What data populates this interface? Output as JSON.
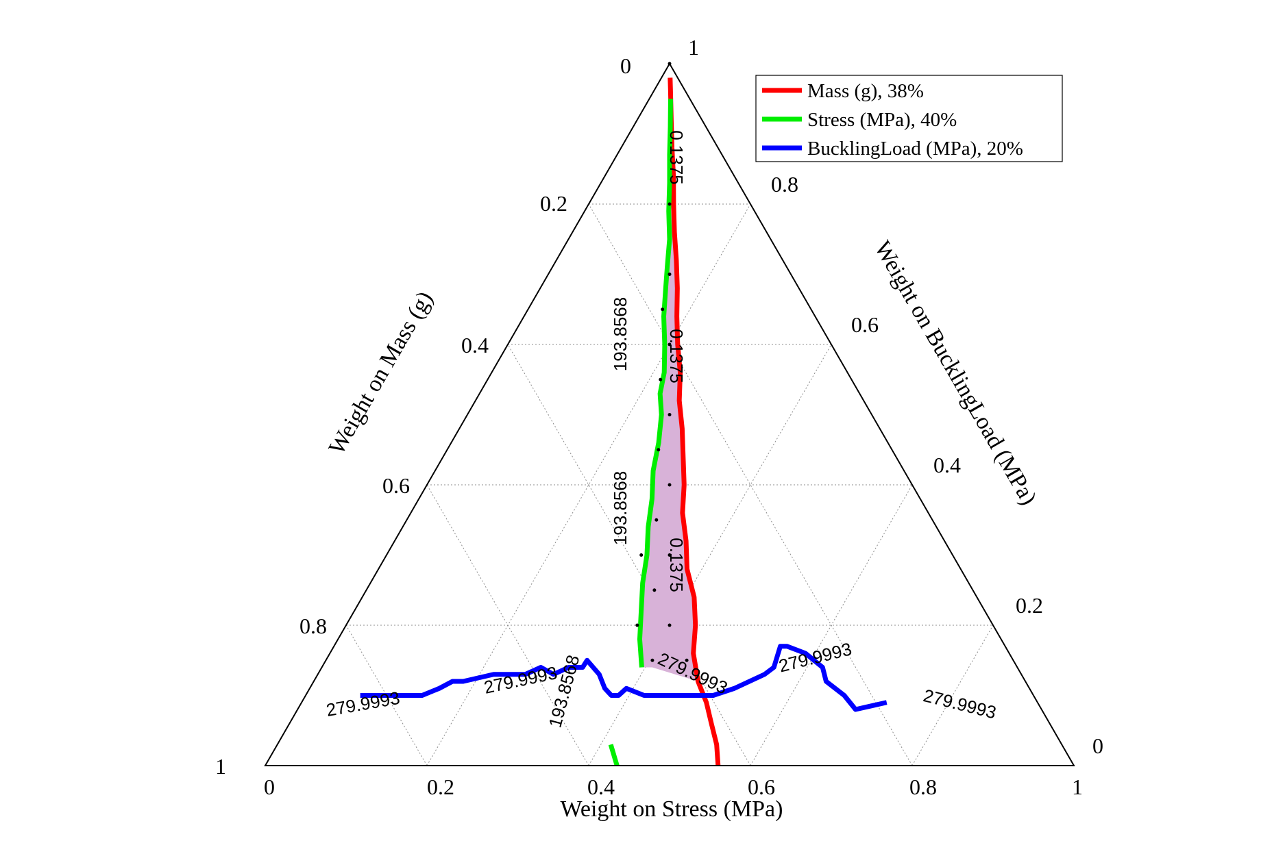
{
  "chart_data": {
    "type": "ternary",
    "axes": {
      "left": {
        "label": "Weight on Mass (g)",
        "ticks": [
          "0",
          "0.2",
          "0.4",
          "0.6",
          "0.8",
          "1"
        ]
      },
      "right": {
        "label": "Weight on BucklingLoad (MPa)",
        "ticks": [
          "1",
          "0.8",
          "0.6",
          "0.4",
          "0.2",
          "0"
        ]
      },
      "bottom": {
        "label": "Weight on Stress (MPa)",
        "ticks": [
          "0",
          "0.2",
          "0.4",
          "0.6",
          "0.8",
          "1"
        ]
      }
    },
    "grid": true,
    "legend": {
      "placement": "top-right",
      "entries": [
        {
          "label": "Mass (g), 38%",
          "color": "#ff0000"
        },
        {
          "label": "Stress (MPa), 40%",
          "color": "#00ee00"
        },
        {
          "label": "BucklingLoad (MPa), 20%",
          "color": "#0000ff"
        }
      ]
    },
    "feasible_region_color": "#d8b2d8",
    "series": [
      {
        "name": "Mass (g), 38%",
        "color": "#ff0000",
        "contour_value": "0.1375",
        "points": [
          [
            0.02,
            0.07
          ],
          [
            0.04,
            0.06
          ],
          [
            0.08,
            0.05
          ],
          [
            0.12,
            0.05
          ],
          [
            0.16,
            0.06
          ],
          [
            0.2,
            0.05
          ],
          [
            0.24,
            0.05
          ],
          [
            0.28,
            0.06
          ],
          [
            0.32,
            0.06
          ],
          [
            0.36,
            0.05
          ],
          [
            0.4,
            0.05
          ],
          [
            0.44,
            0.06
          ],
          [
            0.48,
            0.05
          ],
          [
            0.52,
            0.06
          ],
          [
            0.56,
            0.06
          ],
          [
            0.6,
            0.06
          ],
          [
            0.64,
            0.05
          ],
          [
            0.68,
            0.06
          ],
          [
            0.72,
            0.06
          ],
          [
            0.76,
            0.08
          ],
          [
            0.8,
            0.08
          ],
          [
            0.84,
            0.07
          ],
          [
            0.88,
            0.08
          ],
          [
            0.91,
            0.1
          ],
          [
            0.94,
            0.11
          ],
          [
            0.97,
            0.12
          ],
          [
            1.0,
            0.12
          ]
        ]
      },
      {
        "name": "Stress (MPa), 40%",
        "color": "#00ee00",
        "contour_value": "193.8568",
        "points": [
          [
            0.05,
            0.05
          ],
          [
            0.09,
            0.02
          ],
          [
            0.13,
            0.0
          ],
          [
            0.17,
            0.0
          ],
          [
            0.21,
            -0.01
          ],
          [
            0.25,
            0.0
          ],
          [
            0.29,
            -0.02
          ],
          [
            0.32,
            -0.03
          ],
          [
            0.36,
            -0.04
          ],
          [
            0.4,
            -0.03
          ],
          [
            0.44,
            -0.03
          ],
          [
            0.47,
            -0.05
          ],
          [
            0.5,
            -0.04
          ],
          [
            0.54,
            -0.05
          ],
          [
            0.58,
            -0.07
          ],
          [
            0.62,
            -0.07
          ],
          [
            0.66,
            -0.08
          ],
          [
            0.7,
            -0.08
          ],
          [
            0.74,
            -0.09
          ],
          [
            0.78,
            -0.09
          ],
          [
            0.82,
            -0.09
          ],
          [
            0.86,
            -0.08
          ]
        ]
      },
      {
        "name": "Stress (MPa), 40%",
        "color": "#00ee00",
        "contour_value": "193.8568",
        "points": [
          [
            0.97,
            -0.15
          ],
          [
            1.0,
            -0.13
          ]
        ]
      },
      {
        "name": "BucklingLoad (MPa), 20%",
        "color": "#0000ff",
        "contour_value": "279.9993",
        "points": [
          [
            0.9,
            -0.85
          ],
          [
            0.9,
            -0.81
          ],
          [
            0.9,
            -0.75
          ],
          [
            0.9,
            -0.68
          ],
          [
            0.89,
            -0.64
          ],
          [
            0.88,
            -0.61
          ],
          [
            0.88,
            -0.58
          ],
          [
            0.87,
            -0.5
          ],
          [
            0.87,
            -0.46
          ],
          [
            0.87,
            -0.41
          ],
          [
            0.86,
            -0.37
          ],
          [
            0.87,
            -0.33
          ],
          [
            0.86,
            -0.29
          ],
          [
            0.86,
            -0.25
          ],
          [
            0.85,
            -0.24
          ],
          [
            0.87,
            -0.2
          ],
          [
            0.89,
            -0.18
          ],
          [
            0.9,
            -0.16
          ],
          [
            0.9,
            -0.14
          ],
          [
            0.89,
            -0.12
          ],
          [
            0.9,
            -0.07
          ],
          [
            0.9,
            -0.02
          ],
          [
            0.9,
            0.02
          ],
          [
            0.9,
            0.07
          ],
          [
            0.9,
            0.12
          ],
          [
            0.89,
            0.18
          ],
          [
            0.87,
            0.27
          ],
          [
            0.86,
            0.3
          ],
          [
            0.83,
            0.33
          ],
          [
            0.83,
            0.35
          ],
          [
            0.84,
            0.4
          ],
          [
            0.86,
            0.44
          ],
          [
            0.88,
            0.44
          ],
          [
            0.9,
            0.48
          ],
          [
            0.92,
            0.5
          ],
          [
            0.91,
            0.59
          ]
        ]
      }
    ],
    "contour_labels": [
      "0.1375",
      "0.1375",
      "0.1375",
      "193.8568",
      "193.8568",
      "193.8568",
      "279.9993",
      "279.9993",
      "279.9993",
      "279.9993",
      "279.9993"
    ],
    "feasible_points": [
      [
        0.2,
        0.0
      ],
      [
        0.3,
        0.0
      ],
      [
        0.35,
        -0.05
      ],
      [
        0.4,
        0.0
      ],
      [
        0.45,
        -0.05
      ],
      [
        0.5,
        0.0
      ],
      [
        0.55,
        -0.05
      ],
      [
        0.6,
        0.0
      ],
      [
        0.65,
        -0.05
      ],
      [
        0.7,
        -0.1
      ],
      [
        0.7,
        0.0
      ],
      [
        0.75,
        -0.05
      ],
      [
        0.8,
        -0.1
      ],
      [
        0.8,
        0.0
      ],
      [
        0.85,
        -0.05
      ],
      [
        0.85,
        0.05
      ]
    ]
  }
}
